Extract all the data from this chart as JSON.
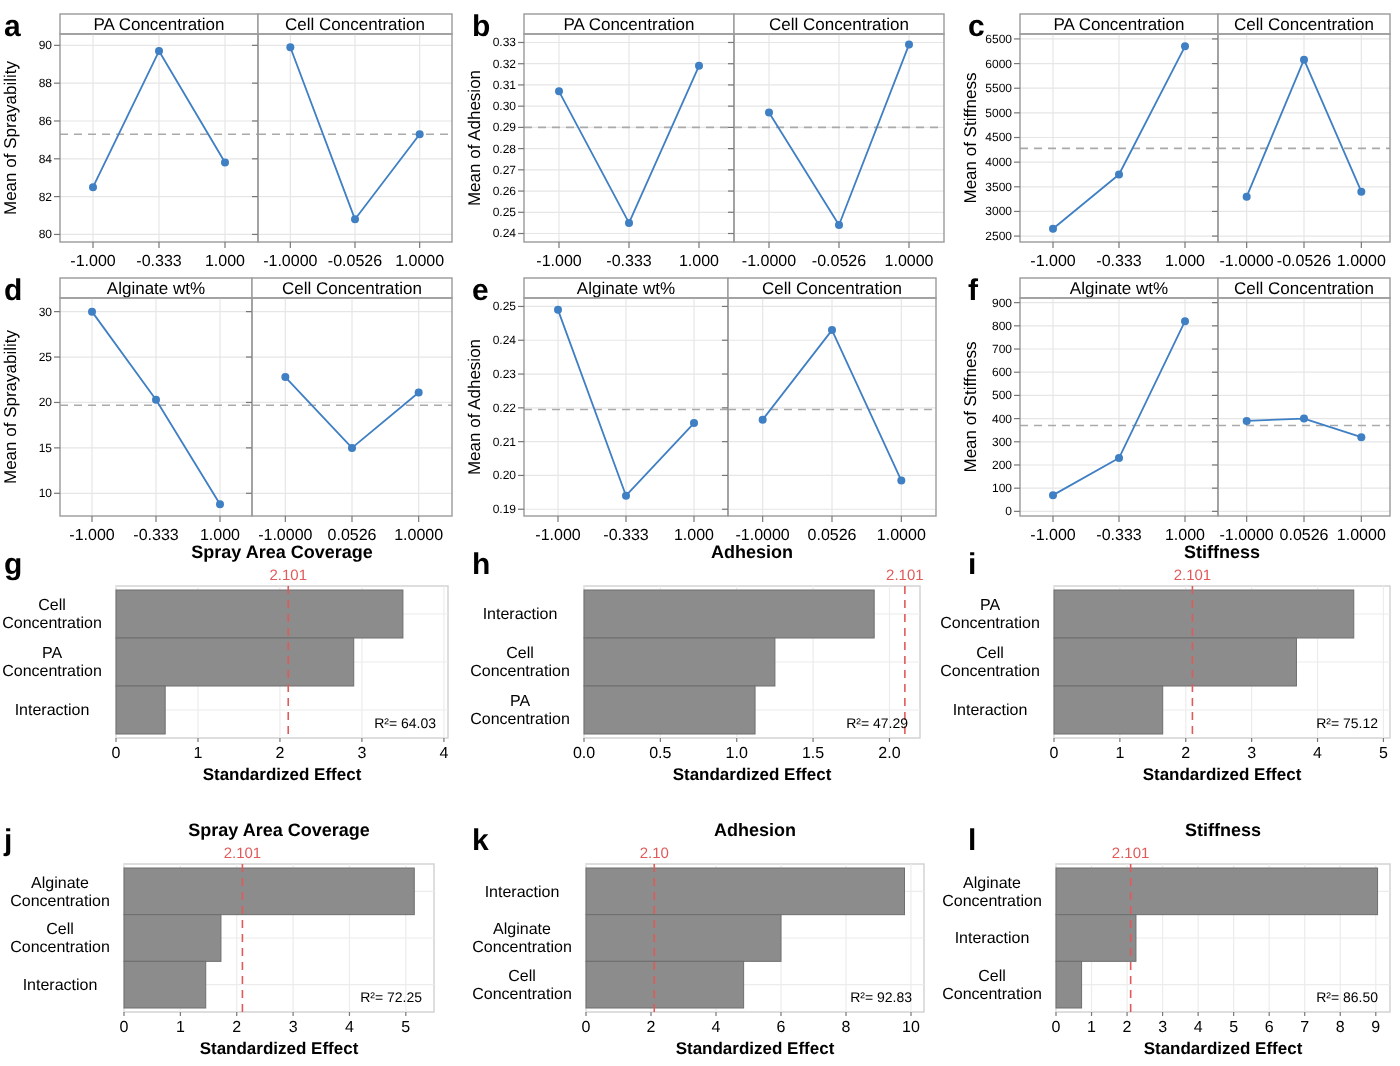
{
  "chart_data": [
    {
      "type": "line",
      "title": "PA Concentration",
      "ylabel": "Mean of Sprayability",
      "annotations": [
        "a"
      ],
      "categories": [
        "-1.000",
        "-0.333",
        "1.000"
      ],
      "values": [
        82.5,
        89.7,
        83.8
      ],
      "color": "#3f7fc4",
      "marker": "circle",
      "ylim": [
        79.6,
        90.6
      ],
      "yticks": [
        80,
        82,
        84,
        86,
        88,
        90
      ],
      "grid": true,
      "ref_lines": [
        {
          "axis": "y",
          "value": 85.3,
          "color": "#aaaaaa",
          "line_style": "dashed"
        }
      ]
    },
    {
      "type": "line",
      "title": "Cell Concentration",
      "categories": [
        "-1.0000",
        "-0.0526",
        "1.0000"
      ],
      "values": [
        89.9,
        80.8,
        85.3
      ],
      "color": "#3f7fc4",
      "marker": "circle",
      "ylim": [
        79.6,
        90.6
      ],
      "yticks": [
        80,
        82,
        84,
        86,
        88,
        90
      ],
      "grid": true,
      "tick_labels": "x",
      "ref_lines": [
        {
          "axis": "y",
          "value": 85.3,
          "color": "#aaaaaa",
          "line_style": "dashed"
        }
      ]
    },
    {
      "type": "line",
      "title": "PA Concentration",
      "ylabel": "Mean of Adhesion",
      "annotations": [
        "b"
      ],
      "categories": [
        "-1.000",
        "-0.333",
        "1.000"
      ],
      "values": [
        0.307,
        0.245,
        0.319
      ],
      "color": "#3f7fc4",
      "marker": "circle",
      "ylim": [
        0.236,
        0.334
      ],
      "yticks": [
        0.24,
        0.25,
        0.26,
        0.27,
        0.28,
        0.29,
        {
          "value": 0.3,
          "label": "0.30"
        },
        0.31,
        0.32,
        0.33
      ],
      "grid": true,
      "ref_lines": [
        {
          "axis": "y",
          "value": 0.29,
          "color": "#aaaaaa",
          "line_style": "dashed"
        }
      ]
    },
    {
      "type": "line",
      "title": "Cell Concentration",
      "categories": [
        "-1.0000",
        "-0.0526",
        "1.0000"
      ],
      "values": [
        0.297,
        0.244,
        0.329
      ],
      "color": "#3f7fc4",
      "marker": "circle",
      "ylim": [
        0.236,
        0.334
      ],
      "yticks": [
        0.24,
        0.25,
        0.26,
        0.27,
        0.28,
        0.29,
        0.3,
        0.31,
        0.32,
        0.33
      ],
      "grid": true,
      "tick_labels": "x",
      "ref_lines": [
        {
          "axis": "y",
          "value": 0.29,
          "color": "#aaaaaa",
          "line_style": "dashed"
        }
      ]
    },
    {
      "type": "line",
      "title": "PA Concentration",
      "ylabel": "Mean of Stiffness",
      "annotations": [
        "c"
      ],
      "categories": [
        "-1.000",
        "-0.333",
        "1.000"
      ],
      "values": [
        2650,
        3750,
        6350
      ],
      "color": "#3f7fc4",
      "marker": "circle",
      "ylim": [
        2380,
        6600
      ],
      "yticks": [
        2500,
        3000,
        3500,
        4000,
        4500,
        5000,
        5500,
        6000,
        6500
      ],
      "grid": true,
      "ref_lines": [
        {
          "axis": "y",
          "value": 4280,
          "color": "#aaaaaa",
          "line_style": "dashed"
        }
      ]
    },
    {
      "type": "line",
      "title": "Cell Concentration",
      "categories": [
        "-1.0000",
        "-0.0526",
        "1.0000"
      ],
      "values": [
        3300,
        6080,
        3400
      ],
      "color": "#3f7fc4",
      "marker": "circle",
      "ylim": [
        2380,
        6600
      ],
      "yticks": [
        2500,
        3000,
        3500,
        4000,
        4500,
        5000,
        5500,
        6000,
        6500
      ],
      "grid": true,
      "tick_labels": "x",
      "ref_lines": [
        {
          "axis": "y",
          "value": 4280,
          "color": "#aaaaaa",
          "line_style": "dashed"
        }
      ]
    },
    {
      "type": "line",
      "title": "Alginate wt%",
      "ylabel": "Mean of Sprayability",
      "annotations": [
        "d"
      ],
      "categories": [
        "-1.000",
        "-0.333",
        "1.000"
      ],
      "values": [
        30.0,
        20.3,
        8.8
      ],
      "color": "#3f7fc4",
      "marker": "circle",
      "ylim": [
        7.5,
        31.5
      ],
      "yticks": [
        10,
        15,
        20,
        25,
        30
      ],
      "grid": true,
      "ref_lines": [
        {
          "axis": "y",
          "value": 19.7,
          "color": "#aaaaaa",
          "line_style": "dashed"
        }
      ]
    },
    {
      "type": "line",
      "title": "Cell Concentration",
      "categories": [
        "-1.0000",
        "0.0526",
        "1.0000"
      ],
      "values": [
        22.8,
        15.0,
        21.1
      ],
      "color": "#3f7fc4",
      "marker": "circle",
      "ylim": [
        7.5,
        31.5
      ],
      "yticks": [
        10,
        15,
        20,
        25,
        30
      ],
      "grid": true,
      "tick_labels": "x",
      "ref_lines": [
        {
          "axis": "y",
          "value": 19.7,
          "color": "#aaaaaa",
          "line_style": "dashed"
        }
      ]
    },
    {
      "type": "line",
      "title": "Alginate wt%",
      "ylabel": "Mean of Adhesion",
      "annotations": [
        "e"
      ],
      "categories": [
        "-1.000",
        "-0.333",
        "1.000"
      ],
      "values": [
        0.249,
        0.194,
        0.2155
      ],
      "color": "#3f7fc4",
      "marker": "circle",
      "ylim": [
        0.188,
        0.2525
      ],
      "yticks": [
        0.19,
        {
          "value": 0.2,
          "label": "0.20"
        },
        0.21,
        0.22,
        0.23,
        0.24,
        0.25
      ],
      "grid": true,
      "ref_lines": [
        {
          "axis": "y",
          "value": 0.2195,
          "color": "#aaaaaa",
          "line_style": "dashed"
        }
      ]
    },
    {
      "type": "line",
      "title": "Cell Concentration",
      "categories": [
        "-1.0000",
        "0.0526",
        "1.0000"
      ],
      "values": [
        0.2165,
        0.243,
        0.1985
      ],
      "color": "#3f7fc4",
      "marker": "circle",
      "ylim": [
        0.188,
        0.2525
      ],
      "yticks": [
        0.19,
        0.2,
        0.21,
        0.22,
        0.23,
        0.24,
        0.25
      ],
      "grid": true,
      "tick_labels": "x",
      "ref_lines": [
        {
          "axis": "y",
          "value": 0.2195,
          "color": "#aaaaaa",
          "line_style": "dashed"
        }
      ]
    },
    {
      "type": "line",
      "title": "Alginate wt%",
      "ylabel": "Mean of Stiffness",
      "annotations": [
        "f"
      ],
      "categories": [
        "-1.000",
        "-0.333",
        "1.000"
      ],
      "values": [
        70,
        230,
        820
      ],
      "color": "#3f7fc4",
      "marker": "circle",
      "ylim": [
        -20,
        920
      ],
      "yticks": [
        0,
        100,
        200,
        300,
        400,
        500,
        600,
        700,
        800,
        900
      ],
      "grid": true,
      "ref_lines": [
        {
          "axis": "y",
          "value": 370,
          "color": "#aaaaaa",
          "line_style": "dashed"
        }
      ]
    },
    {
      "type": "line",
      "title": "Cell Concentration",
      "categories": [
        "-1.0000",
        "0.0526",
        "1.0000"
      ],
      "values": [
        390,
        400,
        320
      ],
      "color": "#3f7fc4",
      "marker": "circle",
      "ylim": [
        -20,
        920
      ],
      "yticks": [
        0,
        100,
        200,
        300,
        400,
        500,
        600,
        700,
        800,
        900
      ],
      "grid": true,
      "tick_labels": "x",
      "ref_lines": [
        {
          "axis": "y",
          "value": 370,
          "color": "#aaaaaa",
          "line_style": "dashed"
        }
      ]
    },
    {
      "type": "bar",
      "orientation": "horizontal",
      "title": "Spray Area Coverage",
      "xlabel": "Standardized Effect",
      "annotations": [
        "g",
        "R²= 64.03"
      ],
      "categories": [
        "Cell Concentration",
        "PA Concentration",
        "Interaction"
      ],
      "values": [
        3.5,
        2.9,
        0.6
      ],
      "color": "#8c8c8c",
      "xlim": [
        0,
        4.05
      ],
      "xticks": [
        0,
        1,
        2,
        3,
        4
      ],
      "grid": true,
      "ref_lines": [
        {
          "axis": "x",
          "value": 2.101,
          "label": "2.101",
          "color": "#e05a5a",
          "line_style": "dashed"
        }
      ]
    },
    {
      "type": "bar",
      "orientation": "horizontal",
      "title": "Adhesion",
      "xlabel": "Standardized Effect",
      "annotations": [
        "h",
        "R²= 47.29"
      ],
      "categories": [
        "Interaction",
        "Cell Concentration",
        "PA Concentration"
      ],
      "values": [
        1.9,
        1.25,
        1.12
      ],
      "color": "#8c8c8c",
      "xlim": [
        0,
        2.2
      ],
      "xticks": [
        {
          "value": 0,
          "label": "0.0"
        },
        0.5,
        {
          "value": 1,
          "label": "1.0"
        },
        1.5,
        {
          "value": 2,
          "label": "2.0"
        }
      ],
      "grid": true,
      "ref_lines": [
        {
          "axis": "x",
          "value": 2.101,
          "label": "2.101",
          "color": "#e05a5a",
          "line_style": "dashed"
        }
      ]
    },
    {
      "type": "bar",
      "orientation": "horizontal",
      "title": "Stiffness",
      "xlabel": "Standardized Effect",
      "annotations": [
        "i",
        "R²= 75.12"
      ],
      "categories": [
        "PA Concentration",
        "Cell Concentration",
        "Interaction"
      ],
      "values": [
        4.55,
        3.68,
        1.65
      ],
      "color": "#8c8c8c",
      "xlim": [
        0,
        5.1
      ],
      "xticks": [
        0,
        1,
        2,
        3,
        4,
        5
      ],
      "grid": true,
      "ref_lines": [
        {
          "axis": "x",
          "value": 2.101,
          "label": "2.101",
          "color": "#e05a5a",
          "line_style": "dashed"
        }
      ]
    },
    {
      "type": "bar",
      "orientation": "horizontal",
      "title": "Spray Area Coverage",
      "xlabel": "Standardized Effect",
      "annotations": [
        "j",
        "R²= 72.25"
      ],
      "categories": [
        "Alginate Concentration",
        "Cell Concentration",
        "Interaction"
      ],
      "values": [
        5.15,
        1.72,
        1.45
      ],
      "color": "#8c8c8c",
      "xlim": [
        0,
        5.5
      ],
      "xticks": [
        0,
        1,
        2,
        3,
        4,
        5
      ],
      "grid": true,
      "ref_lines": [
        {
          "axis": "x",
          "value": 2.101,
          "label": "2.101",
          "color": "#e05a5a",
          "line_style": "dashed"
        }
      ]
    },
    {
      "type": "bar",
      "orientation": "horizontal",
      "title": "Adhesion",
      "xlabel": "Standardized Effect",
      "annotations": [
        "k",
        "R²= 92.83"
      ],
      "categories": [
        "Interaction",
        "Alginate Concentration",
        "Cell Concentration"
      ],
      "values": [
        9.8,
        6.0,
        4.85
      ],
      "color": "#8c8c8c",
      "xlim": [
        0,
        10.4
      ],
      "xticks": [
        0,
        2,
        4,
        6,
        8,
        10
      ],
      "grid": true,
      "ref_lines": [
        {
          "axis": "x",
          "value": 2.1,
          "label": "2.10",
          "color": "#e05a5a",
          "line_style": "dashed"
        }
      ]
    },
    {
      "type": "bar",
      "orientation": "horizontal",
      "title": "Stiffness",
      "xlabel": "Standardized Effect",
      "annotations": [
        "l",
        "R²= 86.50"
      ],
      "categories": [
        "Alginate Concentration",
        "Interaction",
        "Cell Concentration"
      ],
      "values": [
        9.05,
        2.25,
        0.72
      ],
      "color": "#8c8c8c",
      "xlim": [
        0,
        9.4
      ],
      "xticks": [
        0,
        1,
        2,
        3,
        4,
        5,
        6,
        7,
        8,
        9
      ],
      "grid": true,
      "ref_lines": [
        {
          "axis": "x",
          "value": 2.101,
          "label": "2.101",
          "color": "#e05a5a",
          "line_style": "dashed"
        }
      ]
    }
  ]
}
